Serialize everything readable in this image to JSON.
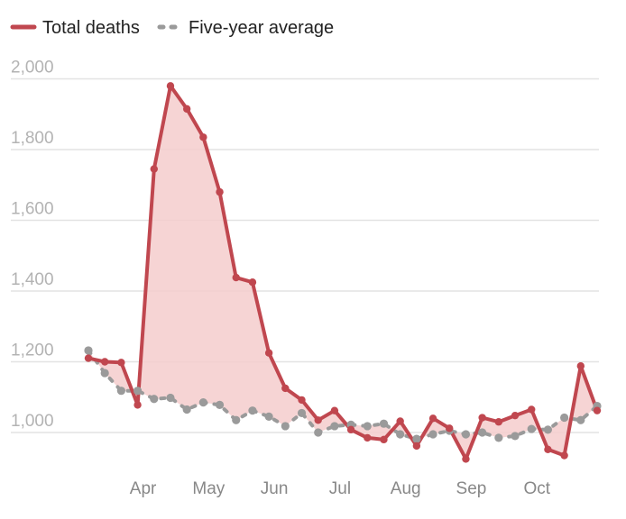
{
  "chart_data": {
    "type": "line",
    "legend": {
      "placement": "top-left",
      "entries": [
        {
          "label": "Total deaths",
          "style": "solid",
          "color": "#c0474f"
        },
        {
          "label": "Five-year average",
          "style": "dashed",
          "color": "#9a9a9a"
        }
      ]
    },
    "yticks": [
      {
        "value": 1000,
        "label": "1,000"
      },
      {
        "value": 1200,
        "label": "1,200"
      },
      {
        "value": 1400,
        "label": "1,400"
      },
      {
        "value": 1600,
        "label": "1,600"
      },
      {
        "value": 1800,
        "label": "1,800"
      },
      {
        "value": 2000,
        "label": "2,000"
      }
    ],
    "ylim": [
      950,
      2000
    ],
    "xticks": [
      {
        "index": 3,
        "label": "Apr"
      },
      {
        "index": 7,
        "label": "May"
      },
      {
        "index": 11,
        "label": "Jun"
      },
      {
        "index": 15,
        "label": "Jul"
      },
      {
        "index": 19,
        "label": "Aug"
      },
      {
        "index": 23,
        "label": "Sep"
      },
      {
        "index": 27,
        "label": "Oct"
      }
    ],
    "grid": true,
    "fill_between": {
      "color": "#f4cccc"
    },
    "series": [
      {
        "name": "Total deaths",
        "color": "#c0474f",
        "values": [
          1210,
          1200,
          1198,
          1078,
          1745,
          1980,
          1915,
          1835,
          1680,
          1438,
          1425,
          1225,
          1125,
          1092,
          1035,
          1062,
          1008,
          985,
          980,
          1032,
          962,
          1040,
          1012,
          925,
          1042,
          1030,
          1048,
          1065,
          952,
          935,
          1188,
          1062
        ]
      },
      {
        "name": "Five-year average",
        "color": "#9a9a9a",
        "values": [
          1232,
          1168,
          1118,
          1118,
          1095,
          1098,
          1065,
          1085,
          1078,
          1035,
          1062,
          1045,
          1018,
          1055,
          1000,
          1018,
          1022,
          1018,
          1025,
          995,
          982,
          995,
          1005,
          995,
          1000,
          985,
          990,
          1010,
          1008,
          1042,
          1035,
          1075
        ]
      }
    ]
  }
}
